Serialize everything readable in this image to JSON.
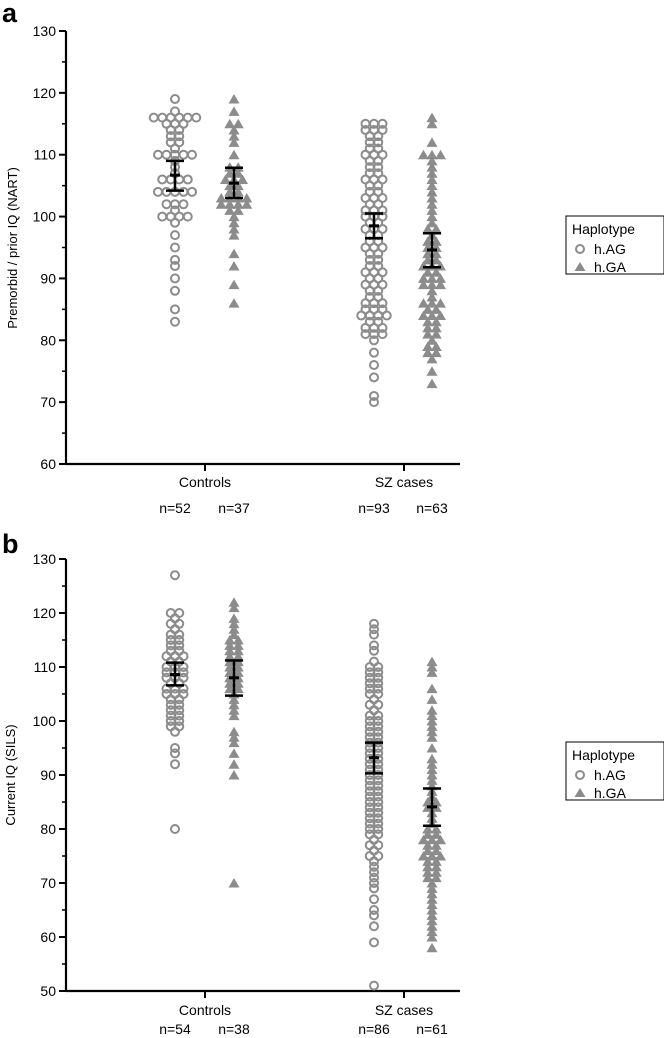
{
  "colors": {
    "marker": "#8c8c8c",
    "errorbar": "#000000",
    "axis": "#000000"
  },
  "chart_data": [
    {
      "type": "scatter",
      "panel_label": "a",
      "ylabel": "Premorbid / prior IQ (NART)",
      "ylim": [
        60,
        130
      ],
      "yticks": [
        60,
        70,
        80,
        90,
        100,
        110,
        120,
        130
      ],
      "categories": [
        "Controls",
        "SZ cases"
      ],
      "legend": {
        "title": "Haplotype",
        "entries": [
          "h.AG",
          "h.GA"
        ],
        "placement": "right"
      },
      "series": [
        {
          "name": "h.AG",
          "marker": "circle",
          "group": "Controls",
          "n_label": "n=52",
          "mean": 106.7,
          "ci": [
            104.2,
            109.0
          ],
          "values": [
            119,
            117,
            116,
            116,
            116,
            116,
            116,
            116,
            115,
            115,
            115,
            114,
            114,
            113,
            113,
            112,
            112,
            111,
            110,
            110,
            110,
            110,
            110,
            109,
            108,
            107,
            106,
            106,
            106,
            106,
            104,
            104,
            104,
            104,
            104,
            102,
            102,
            102,
            101,
            100,
            100,
            100,
            100,
            99,
            97,
            95,
            93,
            92,
            90,
            88,
            85,
            83
          ]
        },
        {
          "name": "h.GA",
          "marker": "triangle",
          "group": "Controls",
          "n_label": "n=37",
          "mean": 105.4,
          "ci": [
            103.0,
            107.9
          ],
          "values": [
            119,
            117,
            115,
            115,
            114,
            113,
            112,
            110,
            108,
            108,
            107,
            107,
            106,
            106,
            106,
            105,
            105,
            104,
            104,
            103,
            103,
            103,
            103,
            102,
            102,
            102,
            102,
            101,
            101,
            100,
            99,
            98,
            97,
            94,
            92,
            89,
            86
          ]
        },
        {
          "name": "h.AG",
          "marker": "circle",
          "group": "SZ cases",
          "n_label": "n=93",
          "mean": 98.5,
          "ci": [
            96.5,
            100.5
          ],
          "values": [
            115,
            115,
            115,
            114,
            114,
            114,
            113,
            113,
            112,
            112,
            111,
            111,
            110,
            110,
            110,
            109,
            109,
            108,
            108,
            107,
            107,
            106,
            106,
            106,
            105,
            105,
            104,
            104,
            103,
            103,
            103,
            102,
            102,
            101,
            101,
            101,
            100,
            100,
            100,
            99,
            99,
            98,
            98,
            98,
            97,
            97,
            96,
            96,
            95,
            95,
            95,
            94,
            94,
            93,
            93,
            92,
            92,
            91,
            91,
            91,
            90,
            90,
            89,
            89,
            89,
            88,
            88,
            87,
            87,
            86,
            86,
            86,
            85,
            85,
            85,
            84,
            84,
            84,
            84,
            83,
            83,
            82,
            82,
            82,
            81,
            81,
            81,
            80,
            78,
            76,
            74,
            71,
            70
          ]
        },
        {
          "name": "h.GA",
          "marker": "triangle",
          "group": "SZ cases",
          "n_label": "n=63",
          "mean": 94.6,
          "ci": [
            91.8,
            97.3
          ],
          "values": [
            116,
            115,
            112,
            110,
            110,
            110,
            109,
            108,
            107,
            106,
            105,
            104,
            103,
            102,
            101,
            100,
            99,
            98,
            98,
            97,
            96,
            96,
            95,
            95,
            94,
            94,
            93,
            93,
            92,
            92,
            92,
            91,
            91,
            90,
            90,
            90,
            89,
            89,
            89,
            88,
            87,
            86,
            86,
            86,
            85,
            85,
            84,
            84,
            84,
            83,
            83,
            82,
            82,
            81,
            81,
            80,
            79,
            79,
            78,
            78,
            77,
            75,
            73
          ]
        }
      ]
    },
    {
      "type": "scatter",
      "panel_label": "b",
      "ylabel": "Current IQ (SILS)",
      "ylim": [
        50,
        130
      ],
      "yticks": [
        50,
        60,
        70,
        80,
        90,
        100,
        110,
        120,
        130
      ],
      "categories": [
        "Controls",
        "SZ cases"
      ],
      "legend": {
        "title": "Haplotype",
        "entries": [
          "h.AG",
          "h.GA"
        ],
        "placement": "right"
      },
      "series": [
        {
          "name": "h.AG",
          "marker": "circle",
          "group": "Controls",
          "n_label": "n=54",
          "mean": 108.6,
          "ci": [
            106.6,
            110.8
          ],
          "values": [
            127,
            120,
            120,
            119,
            118,
            118,
            117,
            116,
            116,
            115,
            115,
            114,
            114,
            113,
            113,
            112,
            112,
            112,
            111,
            111,
            110,
            110,
            110,
            109,
            109,
            109,
            108,
            108,
            108,
            107,
            107,
            106,
            106,
            106,
            105,
            105,
            105,
            104,
            104,
            103,
            103,
            102,
            102,
            101,
            101,
            100,
            100,
            99,
            99,
            98,
            95,
            94,
            92,
            80
          ]
        },
        {
          "name": "h.GA",
          "marker": "triangle",
          "group": "Controls",
          "n_label": "n=38",
          "mean": 108.0,
          "ci": [
            104.7,
            111.2
          ],
          "values": [
            122,
            121,
            119,
            118,
            117,
            116,
            115,
            115,
            114,
            114,
            113,
            113,
            112,
            112,
            111,
            111,
            110,
            110,
            109,
            109,
            108,
            108,
            107,
            107,
            106,
            106,
            105,
            104,
            103,
            102,
            101,
            98,
            97,
            96,
            94,
            92,
            90,
            70
          ]
        },
        {
          "name": "h.AG",
          "marker": "circle",
          "group": "SZ cases",
          "n_label": "n=86",
          "mean": 93.2,
          "ci": [
            90.3,
            96.0
          ],
          "values": [
            118,
            117,
            116,
            114,
            113,
            111,
            110,
            110,
            109,
            109,
            108,
            108,
            107,
            107,
            106,
            106,
            105,
            105,
            104,
            103,
            103,
            102,
            101,
            101,
            100,
            100,
            99,
            99,
            98,
            98,
            97,
            97,
            96,
            96,
            95,
            95,
            94,
            94,
            93,
            93,
            92,
            92,
            91,
            91,
            90,
            90,
            89,
            89,
            88,
            88,
            87,
            87,
            86,
            86,
            85,
            85,
            84,
            84,
            83,
            83,
            82,
            82,
            81,
            81,
            80,
            80,
            79,
            79,
            78,
            77,
            77,
            76,
            75,
            75,
            74,
            73,
            72,
            71,
            70,
            69,
            67,
            65,
            64,
            62,
            59,
            51
          ]
        },
        {
          "name": "h.GA",
          "marker": "triangle",
          "group": "SZ cases",
          "n_label": "n=61",
          "mean": 84.1,
          "ci": [
            80.6,
            87.5
          ],
          "values": [
            111,
            110,
            109,
            106,
            104,
            102,
            101,
            100,
            99,
            98,
            97,
            95,
            93,
            92,
            91,
            90,
            89,
            88,
            87,
            86,
            85,
            85,
            84,
            84,
            83,
            82,
            81,
            80,
            80,
            79,
            79,
            78,
            78,
            78,
            77,
            77,
            76,
            76,
            75,
            75,
            75,
            74,
            74,
            73,
            73,
            72,
            72,
            71,
            71,
            70,
            69,
            68,
            67,
            66,
            65,
            64,
            63,
            62,
            61,
            60,
            58
          ]
        }
      ]
    }
  ]
}
